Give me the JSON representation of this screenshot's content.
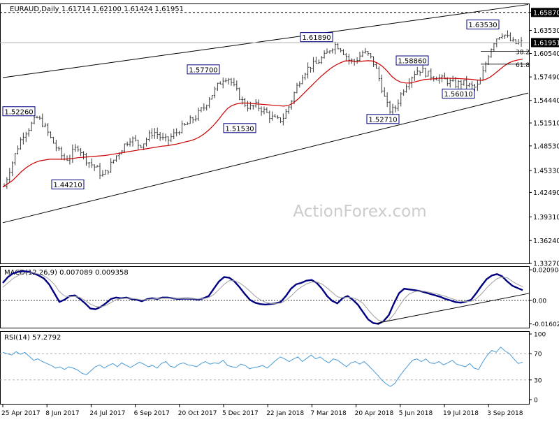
{
  "header": {
    "symbol": "EURAUD,Daily",
    "ohlc": "1.61714 1.62100 1.61424 1.61951"
  },
  "watermark": "ActionForex.com",
  "colors": {
    "bars": "#3a3a3a",
    "ma": "#cc0000",
    "macd": "#000080",
    "signal": "#a0a0a0",
    "rsi": "#4a9bd6",
    "channel": "#000000",
    "label_border": "#000080",
    "highlight_bg": "#000000"
  },
  "macd_header": "MACD(12,26,9) 0.007089 0.009358",
  "rsi_header": "RSI(14) 57.2792",
  "chart_data": [
    {
      "type": "ohlc",
      "title": "EURAUD,Daily",
      "ylim": [
        1.3327,
        1.6694
      ],
      "yticks": [
        "1.65870",
        "1.63530",
        "1.60540",
        "1.57490",
        "1.54440",
        "1.51510",
        "1.48530",
        "1.45330",
        "1.42490",
        "1.39310",
        "1.36240",
        "1.33270"
      ],
      "y_highlight": [
        "1.65870",
        "1.61951"
      ],
      "xlabels": [
        "25 Apr 2017",
        "8 Jun 2017",
        "24 Jul 2017",
        "6 Sep 2017",
        "20 Oct 2017",
        "5 Dec 2017",
        "22 Jan 2018",
        "7 Mar 2018",
        "20 Apr 2018",
        "5 Jun 2018",
        "19 Jul 2018",
        "3 Sep 2018"
      ],
      "series_close": [
        1.433,
        1.452,
        1.468,
        1.485,
        1.5,
        1.506,
        1.5145,
        1.522,
        1.517,
        1.507,
        1.495,
        1.485,
        1.475,
        1.468,
        1.47,
        1.48,
        1.485,
        1.472,
        1.465,
        1.46,
        1.455,
        1.446,
        1.452,
        1.462,
        1.472,
        1.48,
        1.488,
        1.495,
        1.492,
        1.486,
        1.49,
        1.498,
        1.504,
        1.5,
        1.494,
        1.492,
        1.498,
        1.503,
        1.509,
        1.512,
        1.518,
        1.522,
        1.53,
        1.536,
        1.548,
        1.555,
        1.565,
        1.573,
        1.575,
        1.565,
        1.555,
        1.544,
        1.538,
        1.535,
        1.538,
        1.534,
        1.53,
        1.524,
        1.52,
        1.518,
        1.523,
        1.535,
        1.55,
        1.565,
        1.578,
        1.585,
        1.59,
        1.592,
        1.598,
        1.603,
        1.612,
        1.617,
        1.614,
        1.606,
        1.597,
        1.594,
        1.6,
        1.607,
        1.604,
        1.597,
        1.582,
        1.562,
        1.54,
        1.53,
        1.535,
        1.55,
        1.563,
        1.572,
        1.58,
        1.585,
        1.582,
        1.578,
        1.576,
        1.574,
        1.572,
        1.57,
        1.567,
        1.565,
        1.568,
        1.566,
        1.563,
        1.561,
        1.565,
        1.585,
        1.605,
        1.62,
        1.628,
        1.632,
        1.626,
        1.62,
        1.618,
        1.6195
      ],
      "ma": {
        "name": "SMA",
        "values": [
          1.432,
          1.436,
          1.44,
          1.446,
          1.452,
          1.457,
          1.461,
          1.464,
          1.466,
          1.467,
          1.468,
          1.468,
          1.468,
          1.468,
          1.4685,
          1.469,
          1.47,
          1.4705,
          1.471,
          1.4715,
          1.472,
          1.4725,
          1.473,
          1.474,
          1.475,
          1.476,
          1.477,
          1.478,
          1.479,
          1.48,
          1.481,
          1.482,
          1.483,
          1.484,
          1.485,
          1.4855,
          1.4865,
          1.4875,
          1.489,
          1.4905,
          1.492,
          1.494,
          1.497,
          1.501,
          1.506,
          1.512,
          1.519,
          1.527,
          1.534,
          1.538,
          1.54,
          1.541,
          1.541,
          1.5405,
          1.54,
          1.5395,
          1.539,
          1.5385,
          1.538,
          1.5375,
          1.537,
          1.538,
          1.541,
          1.546,
          1.552,
          1.558,
          1.564,
          1.57,
          1.576,
          1.581,
          1.586,
          1.59,
          1.593,
          1.5955,
          1.596,
          1.595,
          1.595,
          1.5955,
          1.596,
          1.5955,
          1.593,
          1.589,
          1.583,
          1.576,
          1.571,
          1.568,
          1.567,
          1.567,
          1.5685,
          1.57,
          1.5715,
          1.572,
          1.5725,
          1.573,
          1.5732,
          1.5732,
          1.573,
          1.5728,
          1.5726,
          1.5722,
          1.5718,
          1.571,
          1.5705,
          1.5715,
          1.5745,
          1.579,
          1.584,
          1.589,
          1.593,
          1.5955,
          1.597,
          1.598
        ]
      },
      "channel_upper": [
        [
          1.574,
          0
        ],
        [
          1.669,
          1
        ]
      ],
      "channel_lower": [
        [
          1.3855,
          0
        ],
        [
          1.554,
          1
        ]
      ],
      "annotations": [
        {
          "text": "1.52260",
          "price": 1.5226
        },
        {
          "text": "1.44210",
          "price": 1.4421
        },
        {
          "text": "1.57700",
          "price": 1.577
        },
        {
          "text": "1.51530",
          "price": 1.5153
        },
        {
          "text": "1.61890",
          "price": 1.6189
        },
        {
          "text": "1.58860",
          "price": 1.5886
        },
        {
          "text": "1.52710",
          "price": 1.5271
        },
        {
          "text": "1.56010",
          "price": 1.5601
        },
        {
          "text": "1.63530",
          "price": 1.6353
        }
      ],
      "fib_levels": [
        {
          "text": "38.2",
          "price": 1.608
        },
        {
          "text": "61.8",
          "price": 1.5915
        }
      ]
    },
    {
      "type": "line",
      "title": "MACD(12,26,9) 0.007089 0.009358",
      "ylim": [
        -0.0186,
        0.0229
      ],
      "yticks": [
        "0.020904",
        "0.00",
        "-0.016023"
      ],
      "series": [
        {
          "values": [
            0.012,
            0.016,
            0.0185,
            0.0195,
            0.02,
            0.0196,
            0.0185,
            0.017,
            0.015,
            0.011,
            0.005,
            -0.001,
            0.0005,
            0.003,
            0.0035,
            0.001,
            -0.002,
            -0.0055,
            -0.006,
            -0.0045,
            -0.002,
            0.001,
            0.002,
            0.0015,
            0.002,
            0.001,
            0.0005,
            -0.0005,
            0.0008,
            0.0015,
            0.001,
            0.002,
            0.002,
            0.0015,
            0.001,
            0.0012,
            0.0012,
            0.001,
            0.0005,
            0.0015,
            0.003,
            0.008,
            0.013,
            0.016,
            0.0155,
            0.013,
            0.009,
            0.0045,
            0.0005,
            -0.0015,
            -0.0025,
            -0.0028,
            -0.0025,
            -0.002,
            -0.001,
            0.003,
            0.008,
            0.011,
            0.012,
            0.0135,
            0.014,
            0.012,
            0.008,
            0.003,
            -0.0003,
            -0.002,
            0.0015,
            0.003,
            0.0005,
            -0.003,
            -0.008,
            -0.013,
            -0.0155,
            -0.016,
            -0.014,
            -0.01,
            -0.002,
            0.005,
            0.008,
            0.0075,
            0.007,
            0.0065,
            0.0055,
            0.0045,
            0.0035,
            0.0025,
            0.001,
            0.0,
            -0.0012,
            -0.0015,
            -0.0008,
            0.0005,
            0.005,
            0.01,
            0.0145,
            0.017,
            0.018,
            0.0165,
            0.013,
            0.01,
            0.0085,
            0.007
          ]
        },
        {
          "values": [
            0.009,
            0.012,
            0.015,
            0.017,
            0.0185,
            0.019,
            0.0188,
            0.018,
            0.0168,
            0.0145,
            0.011,
            0.006,
            0.003,
            0.0025,
            0.0028,
            0.002,
            0.0,
            -0.0025,
            -0.004,
            -0.0045,
            -0.0035,
            -0.0015,
            0.0005,
            0.0012,
            0.0015,
            0.0013,
            0.001,
            0.0003,
            0.0006,
            0.001,
            0.0012,
            0.0015,
            0.0016,
            0.0015,
            0.0013,
            0.0013,
            0.0012,
            0.0011,
            0.001,
            0.0012,
            0.002,
            0.004,
            0.0075,
            0.011,
            0.0135,
            0.0135,
            0.012,
            0.0095,
            0.0063,
            0.003,
            0.0005,
            -0.0012,
            -0.002,
            -0.0021,
            -0.0018,
            0.0,
            0.003,
            0.0065,
            0.0092,
            0.0112,
            0.0125,
            0.0125,
            0.0112,
            0.0085,
            0.0055,
            0.0025,
            0.0018,
            0.0022,
            0.0018,
            0.0005,
            -0.002,
            -0.0065,
            -0.0105,
            -0.0135,
            -0.0145,
            -0.0135,
            -0.0095,
            -0.004,
            0.0012,
            0.0045,
            0.006,
            0.0065,
            0.0062,
            0.0055,
            0.0048,
            0.0038,
            0.0028,
            0.0015,
            0.0004,
            -0.0005,
            -0.0008,
            -0.0005,
            0.0012,
            0.0045,
            0.0085,
            0.012,
            0.0148,
            0.016,
            0.0155,
            0.013,
            0.011,
            0.0094
          ]
        }
      ],
      "trendline": [
        [
          -0.0155,
          0.72
        ],
        [
          0.0048,
          1.0
        ]
      ]
    },
    {
      "type": "line",
      "title": "RSI(14) 57.2792",
      "ylim": [
        0,
        100
      ],
      "yticks": [
        "100",
        "70",
        "30",
        "0"
      ],
      "levels": [
        70,
        30
      ],
      "series": [
        {
          "values": [
            72,
            70,
            68,
            73,
            69,
            72,
            66,
            60,
            62,
            58,
            55,
            52,
            48,
            50,
            46,
            50,
            48,
            45,
            40,
            38,
            44,
            50,
            53,
            48,
            52,
            55,
            50,
            56,
            52,
            49,
            53,
            57,
            54,
            50,
            52,
            48,
            55,
            58,
            51,
            49,
            54,
            56,
            53,
            52,
            50,
            55,
            58,
            54,
            56,
            55,
            60,
            52,
            50,
            49,
            54,
            52,
            47,
            49,
            50,
            52,
            48,
            54,
            60,
            65,
            62,
            58,
            62,
            65,
            58,
            63,
            68,
            62,
            65,
            60,
            56,
            62,
            60,
            55,
            50,
            56,
            58,
            54,
            58,
            52,
            45,
            38,
            30,
            24,
            20,
            25,
            35,
            44,
            52,
            60,
            62,
            58,
            62,
            56,
            55,
            58,
            53,
            56,
            60,
            54,
            52,
            50,
            55,
            48,
            46,
            58,
            68,
            75,
            72,
            80,
            74,
            70,
            62,
            55,
            57
          ]
        }
      ]
    }
  ]
}
